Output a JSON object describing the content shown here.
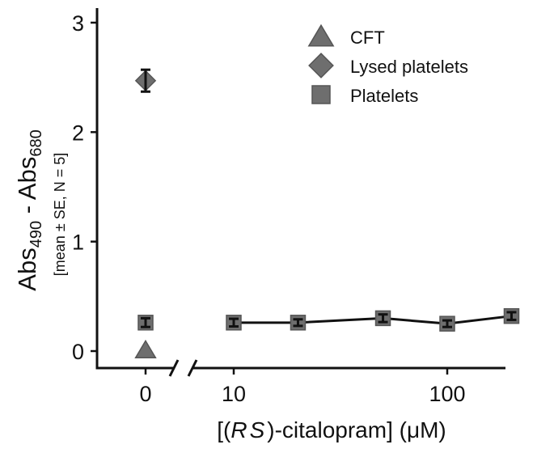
{
  "chart_data": {
    "type": "scatter",
    "title": "",
    "ylabel": {
      "main_prefix": "Abs",
      "sub1": "490",
      "separator": " - Abs",
      "sub2": "680",
      "secondary": "[mean ± SE, N = 5]"
    },
    "xlabel": {
      "prefix": "[(",
      "italic": "RS",
      "suffix": ")-citalopram] (μM)"
    },
    "ylim": [
      0,
      3
    ],
    "y_ticks": [
      0,
      1,
      2,
      3
    ],
    "x_ticks": [
      {
        "value": 0,
        "label": "0"
      },
      {
        "value": 10,
        "label": "10"
      },
      {
        "value": 100,
        "label": "100"
      }
    ],
    "x_scale": "log with axis break after 0",
    "legend": {
      "position": "top-right",
      "entries": [
        {
          "label": "CFT",
          "marker": "triangle"
        },
        {
          "label": "Lysed platelets",
          "marker": "diamond"
        },
        {
          "label": "Platelets",
          "marker": "square"
        }
      ]
    },
    "series": [
      {
        "name": "CFT",
        "marker": "triangle",
        "connected": false,
        "points": [
          {
            "x": 0,
            "y": 0.01,
            "se": 0.0
          }
        ]
      },
      {
        "name": "Lysed platelets",
        "marker": "diamond",
        "connected": false,
        "points": [
          {
            "x": 0,
            "y": 2.47,
            "se": 0.1
          }
        ]
      },
      {
        "name": "Platelets",
        "marker": "square",
        "connected": false,
        "points": [
          {
            "x": 0,
            "y": 0.26,
            "se": 0.04
          }
        ]
      },
      {
        "name": "Platelets",
        "marker": "square",
        "connected": true,
        "points": [
          {
            "x": 10,
            "y": 0.26,
            "se": 0.035
          },
          {
            "x": 20,
            "y": 0.26,
            "se": 0.03
          },
          {
            "x": 50,
            "y": 0.3,
            "se": 0.035
          },
          {
            "x": 100,
            "y": 0.25,
            "se": 0.03
          },
          {
            "x": 200,
            "y": 0.32,
            "se": 0.035
          }
        ]
      }
    ]
  },
  "colors": {
    "marker_fill": "#6e6e6e",
    "marker_stroke": "#555555",
    "line": "#111111",
    "error_bar": "#111111",
    "axis": "#111111"
  }
}
